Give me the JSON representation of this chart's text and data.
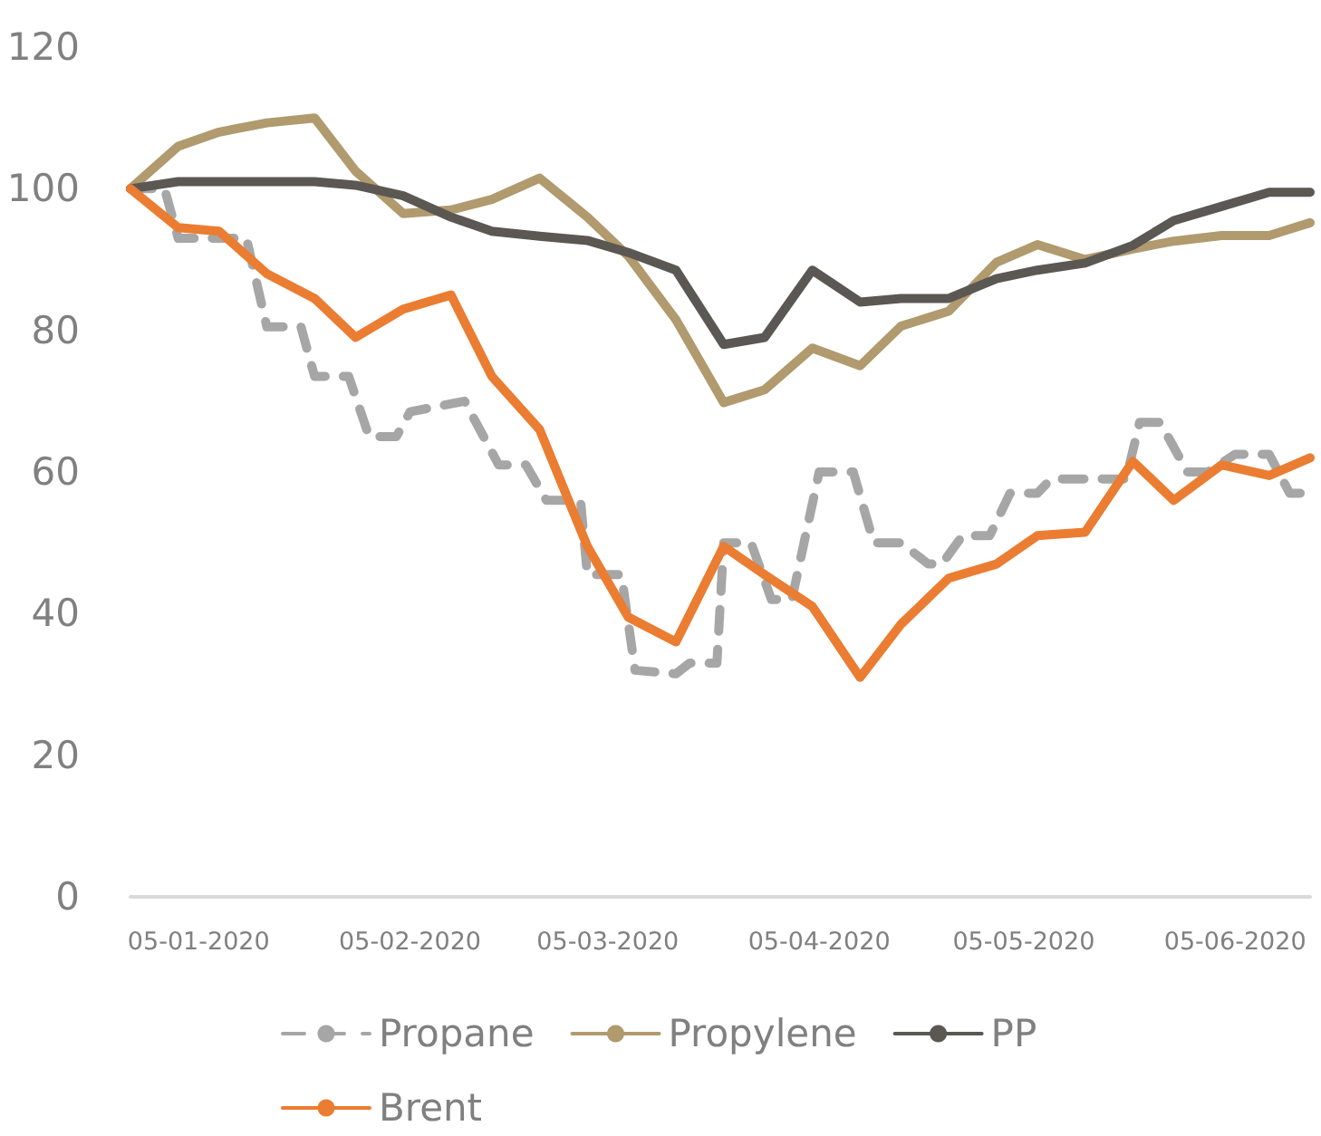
{
  "chart_data": {
    "type": "line",
    "grid": false,
    "legend": "bottom",
    "marker": "none",
    "line_style": "solid",
    "xlim": [
      "2019-12-26",
      "2020-06-16"
    ],
    "xticks": [
      {
        "value": "2020-01-05",
        "label": "05-01-2020"
      },
      {
        "value": "2020-02-05",
        "label": "05-02-2020"
      },
      {
        "value": "2020-03-05",
        "label": "05-03-2020"
      },
      {
        "value": "2020-04-05",
        "label": "05-04-2020"
      },
      {
        "value": "2020-05-05",
        "label": "05-05-2020"
      },
      {
        "value": "2020-06-05",
        "label": "05-06-2020"
      }
    ],
    "ylim": [
      0,
      120
    ],
    "yticks": [
      0,
      20,
      40,
      60,
      80,
      100,
      120
    ],
    "x": [
      "2019-12-26",
      "2020-01-02",
      "2020-01-08",
      "2020-01-15",
      "2020-01-22",
      "2020-01-28",
      "2020-02-04",
      "2020-02-11",
      "2020-02-17",
      "2020-02-24",
      "2020-03-02",
      "2020-03-08",
      "2020-03-15",
      "2020-03-22",
      "2020-03-28",
      "2020-04-04",
      "2020-04-11",
      "2020-04-17",
      "2020-04-24",
      "2020-05-01",
      "2020-05-07",
      "2020-05-14",
      "2020-05-21",
      "2020-05-27",
      "2020-06-03",
      "2020-06-10",
      "2020-06-16"
    ],
    "series": [
      {
        "name": "Propane",
        "color": "#a6a6a6",
        "line_style": "dashed",
        "x": [
          "2019-12-26",
          "2019-12-31",
          "2020-01-02",
          "2020-01-12",
          "2020-01-15",
          "2020-01-20",
          "2020-01-22",
          "2020-01-27",
          "2020-01-30",
          "2020-02-03",
          "2020-02-05",
          "2020-02-13",
          "2020-02-18",
          "2020-02-22",
          "2020-02-25",
          "2020-03-01",
          "2020-03-02",
          "2020-03-07",
          "2020-03-09",
          "2020-03-15",
          "2020-03-17",
          "2020-03-21",
          "2020-03-22",
          "2020-03-26",
          "2020-03-29",
          "2020-04-01",
          "2020-04-05",
          "2020-04-10",
          "2020-04-13",
          "2020-04-17",
          "2020-04-21",
          "2020-04-23",
          "2020-04-26",
          "2020-04-30",
          "2020-05-03",
          "2020-05-07",
          "2020-05-09",
          "2020-05-20",
          "2020-05-22",
          "2020-05-25",
          "2020-05-29",
          "2020-06-01",
          "2020-06-05",
          "2020-06-10",
          "2020-06-13",
          "2020-06-16"
        ],
        "values": [
          100,
          100,
          93,
          93,
          80.5,
          80.5,
          73.5,
          73.5,
          65,
          65,
          68.5,
          70,
          61,
          61,
          56,
          56,
          45.5,
          45.5,
          32,
          31.5,
          33,
          33,
          50,
          50,
          42,
          42,
          60,
          60,
          50,
          50,
          47,
          47,
          51,
          51,
          57,
          57,
          59,
          59,
          67,
          67,
          60,
          60,
          62.5,
          62.5,
          57,
          57
        ]
      },
      {
        "name": "Propylene",
        "color": "#b09a6e",
        "values": [
          100,
          106,
          108,
          109.3,
          110,
          102.5,
          96.5,
          97,
          98.5,
          101.5,
          96,
          90.5,
          81.5,
          69.8,
          71.6,
          77.5,
          75,
          80.6,
          82.7,
          89.6,
          92.1,
          90,
          91.5,
          92.6,
          93.4,
          93.4,
          95.2
        ]
      },
      {
        "name": "PP",
        "color": "#5b5753",
        "values": [
          100,
          101,
          101,
          101,
          101,
          100.5,
          99,
          96,
          94,
          93.3,
          92.7,
          91,
          88.5,
          78,
          79,
          88.5,
          84,
          84.5,
          84.5,
          87.3,
          88.5,
          89.5,
          92,
          95.5,
          97.5,
          99.5,
          99.5
        ]
      },
      {
        "name": "Brent",
        "color": "#ea7d32",
        "values": [
          100,
          94.5,
          94,
          88,
          84.5,
          79,
          83,
          85,
          73.5,
          66,
          49.5,
          39.5,
          36,
          49.5,
          45.5,
          41,
          31,
          38.5,
          45,
          47,
          51,
          51.5,
          61.5,
          56,
          61,
          59.5,
          62
        ]
      }
    ]
  }
}
